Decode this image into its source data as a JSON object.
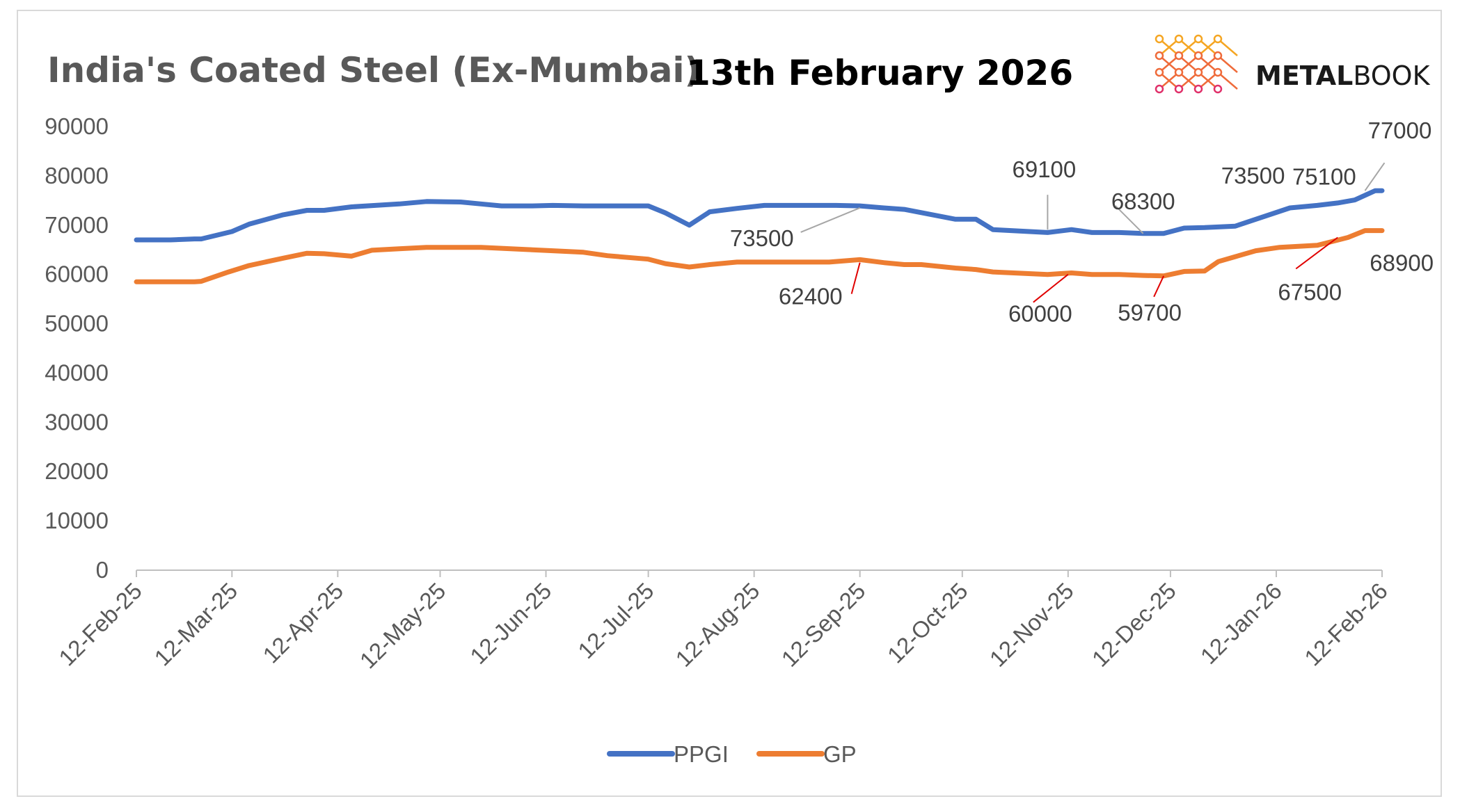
{
  "colors": {
    "ppgi": "#4472C4",
    "gp": "#ED7D31",
    "axis": "#bfbfbf",
    "leader_gray": "#a6a6a6",
    "leader_red": "#e00000",
    "logo_top": "#f5a623",
    "logo_mid": "#ef6b3a",
    "logo_bottom": "#e0306a"
  },
  "header": {
    "title": "India's Coated Steel (Ex-Mumbai)",
    "date": "13th February 2026",
    "brand_prefix": "METAL",
    "brand_suffix": "BOOK",
    "logo_icon": "metalbook-m-lattice-icon"
  },
  "legend": [
    {
      "name": "PPGI",
      "color_key": "ppgi"
    },
    {
      "name": "GP",
      "color_key": "gp"
    }
  ],
  "chart_data": {
    "type": "line",
    "title": "India's Coated Steel (Ex-Mumbai)",
    "subtitle": "13th February 2026",
    "xlabel": "",
    "ylabel": "",
    "ylim": [
      0,
      90000
    ],
    "yticks": [
      0,
      10000,
      20000,
      30000,
      40000,
      50000,
      60000,
      70000,
      80000,
      90000
    ],
    "xlim_days": [
      0,
      365
    ],
    "xtick_labels": [
      "12-Feb-25",
      "12-Mar-25",
      "12-Apr-25",
      "12-May-25",
      "12-Jun-25",
      "12-Jul-25",
      "12-Aug-25",
      "12-Sep-25",
      "12-Oct-25",
      "12-Nov-25",
      "12-Dec-25",
      "12-Jan-26",
      "12-Feb-26"
    ],
    "xtick_days": [
      0,
      28,
      59,
      89,
      120,
      150,
      181,
      212,
      242,
      273,
      303,
      334,
      365
    ],
    "grid": false,
    "legend_position": "bottom",
    "series": [
      {
        "name": "PPGI",
        "color_key": "ppgi",
        "points": [
          [
            0,
            67000
          ],
          [
            10,
            67000
          ],
          [
            17,
            67200
          ],
          [
            19,
            67200
          ],
          [
            28,
            68700
          ],
          [
            33,
            70200
          ],
          [
            43,
            72100
          ],
          [
            50,
            73000
          ],
          [
            55,
            73000
          ],
          [
            63,
            73700
          ],
          [
            70,
            74000
          ],
          [
            77,
            74300
          ],
          [
            85,
            74800
          ],
          [
            95,
            74700
          ],
          [
            101,
            74300
          ],
          [
            107,
            73900
          ],
          [
            116,
            73900
          ],
          [
            122,
            74000
          ],
          [
            131,
            73900
          ],
          [
            138,
            73900
          ],
          [
            150,
            73900
          ],
          [
            155,
            72500
          ],
          [
            162,
            70000
          ],
          [
            168,
            72700
          ],
          [
            176,
            73400
          ],
          [
            184,
            74000
          ],
          [
            195,
            74000
          ],
          [
            205,
            74000
          ],
          [
            212,
            73900
          ],
          [
            219,
            73500
          ],
          [
            225,
            73200
          ],
          [
            240,
            71200
          ],
          [
            246,
            71200
          ],
          [
            251,
            69100
          ],
          [
            267,
            68500
          ],
          [
            274,
            69100
          ],
          [
            280,
            68500
          ],
          [
            288,
            68500
          ],
          [
            295,
            68300
          ],
          [
            301,
            68300
          ],
          [
            307,
            69400
          ],
          [
            313,
            69500
          ],
          [
            322,
            69800
          ],
          [
            338,
            73500
          ],
          [
            346,
            74000
          ],
          [
            352,
            74500
          ],
          [
            357,
            75100
          ],
          [
            363,
            77000
          ],
          [
            365,
            77000
          ]
        ]
      },
      {
        "name": "GP",
        "color_key": "gp",
        "points": [
          [
            0,
            58500
          ],
          [
            10,
            58500
          ],
          [
            17,
            58500
          ],
          [
            19,
            58600
          ],
          [
            27,
            60500
          ],
          [
            33,
            61800
          ],
          [
            43,
            63300
          ],
          [
            50,
            64300
          ],
          [
            55,
            64200
          ],
          [
            63,
            63700
          ],
          [
            69,
            64900
          ],
          [
            77,
            65200
          ],
          [
            85,
            65500
          ],
          [
            95,
            65500
          ],
          [
            101,
            65500
          ],
          [
            107,
            65300
          ],
          [
            116,
            65000
          ],
          [
            122,
            64800
          ],
          [
            131,
            64500
          ],
          [
            138,
            63800
          ],
          [
            150,
            63100
          ],
          [
            155,
            62200
          ],
          [
            162,
            61500
          ],
          [
            168,
            62000
          ],
          [
            176,
            62500
          ],
          [
            184,
            62500
          ],
          [
            195,
            62500
          ],
          [
            203,
            62500
          ],
          [
            212,
            63000
          ],
          [
            219,
            62400
          ],
          [
            225,
            62000
          ],
          [
            230,
            62000
          ],
          [
            240,
            61300
          ],
          [
            246,
            61000
          ],
          [
            251,
            60500
          ],
          [
            267,
            60000
          ],
          [
            274,
            60300
          ],
          [
            280,
            60000
          ],
          [
            288,
            60000
          ],
          [
            295,
            59800
          ],
          [
            301,
            59700
          ],
          [
            307,
            60600
          ],
          [
            313,
            60700
          ],
          [
            317,
            62600
          ],
          [
            322,
            63600
          ],
          [
            328,
            64800
          ],
          [
            335,
            65500
          ],
          [
            346,
            65900
          ],
          [
            355,
            67500
          ],
          [
            360,
            68900
          ],
          [
            365,
            68900
          ]
        ]
      }
    ],
    "annotations": [
      {
        "series": "PPGI",
        "label": "73500",
        "day": 212,
        "value": 73500
      },
      {
        "series": "PPGI",
        "label": "69100",
        "day": 267,
        "value": 69100
      },
      {
        "series": "PPGI",
        "label": "68300",
        "day": 295,
        "value": 68300
      },
      {
        "series": "PPGI",
        "label": "73500",
        "day": 317,
        "value": 73500
      },
      {
        "series": "PPGI",
        "label": "75100",
        "day": 346,
        "value": 75100
      },
      {
        "series": "PPGI",
        "label": "77000",
        "day": 360,
        "value": 77000
      },
      {
        "series": "GP",
        "label": "62400",
        "day": 212,
        "value": 62400
      },
      {
        "series": "GP",
        "label": "60000",
        "day": 273,
        "value": 60000
      },
      {
        "series": "GP",
        "label": "59700",
        "day": 301,
        "value": 59700
      },
      {
        "series": "GP",
        "label": "67500",
        "day": 352,
        "value": 67500
      },
      {
        "series": "GP",
        "label": "68900",
        "day": 363,
        "value": 68900
      }
    ]
  }
}
